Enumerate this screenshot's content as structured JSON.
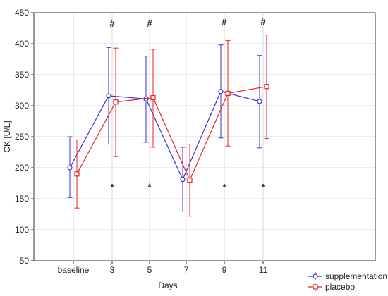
{
  "chart_data": {
    "type": "line",
    "xlabel": "Days",
    "ylabel": "CK [U/L]",
    "categories": [
      "baseline",
      "3",
      "5",
      "7",
      "9",
      "11"
    ],
    "ylim": [
      50,
      450
    ],
    "yticks": [
      50,
      100,
      150,
      200,
      250,
      300,
      350,
      400,
      450
    ],
    "grid": true,
    "legend_position": "bottom-right",
    "series": [
      {
        "name": "supplementation",
        "color": "#3333dd",
        "marker": "circle",
        "values": [
          200,
          316,
          311,
          181,
          323,
          307
        ],
        "error_low": [
          152,
          238,
          241,
          130,
          248,
          232
        ],
        "error_high": [
          250,
          394,
          380,
          233,
          398,
          381
        ]
      },
      {
        "name": "placebo",
        "color": "#ee2222",
        "marker": "square",
        "values": [
          190,
          306,
          313,
          180,
          320,
          331
        ],
        "error_low": [
          135,
          218,
          233,
          122,
          235,
          247
        ],
        "error_high": [
          245,
          393,
          391,
          238,
          405,
          414
        ]
      }
    ],
    "annotations": [
      {
        "category": "3",
        "symbol": "#",
        "y": 432
      },
      {
        "category": "5",
        "symbol": "#",
        "y": 432
      },
      {
        "category": "9",
        "symbol": "#",
        "y": 435
      },
      {
        "category": "11",
        "symbol": "#",
        "y": 435
      },
      {
        "category": "3",
        "symbol": "*",
        "y": 168
      },
      {
        "category": "5",
        "symbol": "*",
        "y": 169
      },
      {
        "category": "9",
        "symbol": "*",
        "y": 168
      },
      {
        "category": "11",
        "symbol": "*",
        "y": 168
      }
    ]
  }
}
